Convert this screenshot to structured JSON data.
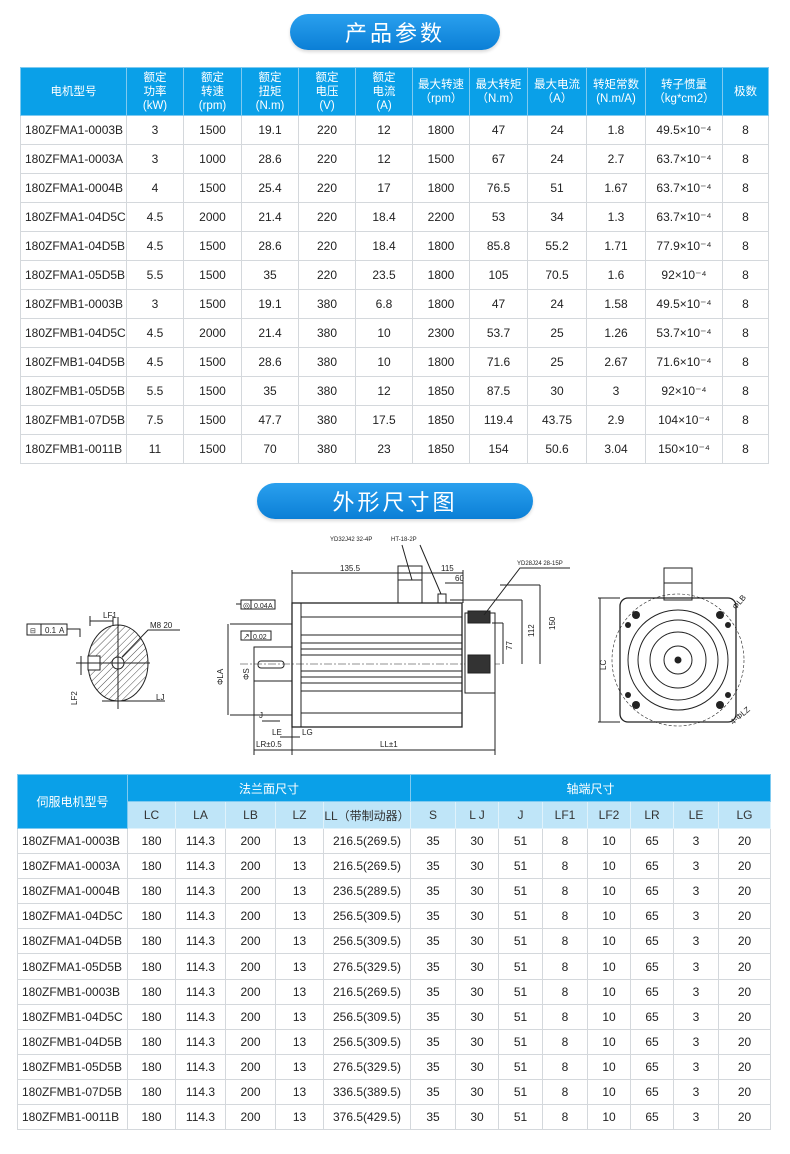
{
  "section1_title": "产品参数",
  "section2_title": "外形尺寸图",
  "params_table": {
    "headers": [
      "电机型号",
      "额定\n功率\n(kW)",
      "额定\n转速\n(rpm)",
      "额定\n扭矩\n(N.m)",
      "额定\n电压\n(V)",
      "额定\n电流\n(A)",
      "最大转速\n（rpm）",
      "最大转矩\n（N.m）",
      "最大电流\n（A）",
      "转矩常数\n(N.m/A)",
      "转子惯量\n（kg*cm2）",
      "极数"
    ],
    "rows": [
      [
        "180ZFMA1-0003B",
        "3",
        "1500",
        "19.1",
        "220",
        "12",
        "1800",
        "47",
        "24",
        "1.8",
        "49.5×10⁻⁴",
        "8"
      ],
      [
        "180ZFMA1-0003A",
        "3",
        "1000",
        "28.6",
        "220",
        "12",
        "1500",
        "67",
        "24",
        "2.7",
        "63.7×10⁻⁴",
        "8"
      ],
      [
        "180ZFMA1-0004B",
        "4",
        "1500",
        "25.4",
        "220",
        "17",
        "1800",
        "76.5",
        "51",
        "1.67",
        "63.7×10⁻⁴",
        "8"
      ],
      [
        "180ZFMA1-04D5C",
        "4.5",
        "2000",
        "21.4",
        "220",
        "18.4",
        "2200",
        "53",
        "34",
        "1.3",
        "63.7×10⁻⁴",
        "8"
      ],
      [
        "180ZFMA1-04D5B",
        "4.5",
        "1500",
        "28.6",
        "220",
        "18.4",
        "1800",
        "85.8",
        "55.2",
        "1.71",
        "77.9×10⁻⁴",
        "8"
      ],
      [
        "180ZFMA1-05D5B",
        "5.5",
        "1500",
        "35",
        "220",
        "23.5",
        "1800",
        "105",
        "70.5",
        "1.6",
        "92×10⁻⁴",
        "8"
      ],
      [
        "180ZFMB1-0003B",
        "3",
        "1500",
        "19.1",
        "380",
        "6.8",
        "1800",
        "47",
        "24",
        "1.58",
        "49.5×10⁻⁴",
        "8"
      ],
      [
        "180ZFMB1-04D5C",
        "4.5",
        "2000",
        "21.4",
        "380",
        "10",
        "2300",
        "53.7",
        "25",
        "1.26",
        "53.7×10⁻⁴",
        "8"
      ],
      [
        "180ZFMB1-04D5B",
        "4.5",
        "1500",
        "28.6",
        "380",
        "10",
        "1800",
        "71.6",
        "25",
        "2.67",
        "71.6×10⁻⁴",
        "8"
      ],
      [
        "180ZFMB1-05D5B",
        "5.5",
        "1500",
        "35",
        "380",
        "12",
        "1850",
        "87.5",
        "30",
        "3",
        "92×10⁻⁴",
        "8"
      ],
      [
        "180ZFMB1-07D5B",
        "7.5",
        "1500",
        "47.7",
        "380",
        "17.5",
        "1850",
        "119.4",
        "43.75",
        "2.9",
        "104×10⁻⁴",
        "8"
      ],
      [
        "180ZFMB1-0011B",
        "11",
        "1500",
        "70",
        "380",
        "23",
        "1850",
        "154",
        "50.6",
        "3.04",
        "150×10⁻⁴",
        "8"
      ]
    ]
  },
  "drawing": {
    "tol_flat": "0.1",
    "tol_ref": "A",
    "lf1": "LF1",
    "m8": "M8 20",
    "lf2": "LF2",
    "lj": "LJ",
    "conc": "0.04",
    "conc_ref": "A",
    "runout": "0.02",
    "la": "ΦLA",
    "s": "ΦS",
    "j": "J",
    "conn1": "YD32J42 32-4P",
    "conn2": "HT-18-2P",
    "conn3": "YD28J24 28-15P",
    "d135": "135.5",
    "d115": "115",
    "d60": "60",
    "d150": "150",
    "d112": "112",
    "d77": "77",
    "le": "LE",
    "lg": "LG",
    "lr": "LR±0.5",
    "ll": "LL±1",
    "lc": "LC",
    "lb": "ΦLB",
    "lz": "4-ΦLZ"
  },
  "dims_table": {
    "model_header": "伺服电机型号",
    "group1": "法兰面尺寸",
    "group2": "轴端尺寸",
    "headers": [
      "LC",
      "LA",
      "LB",
      "LZ",
      "LL（带制动器）",
      "S",
      "L J",
      "J",
      "LF1",
      "LF2",
      "LR",
      "LE",
      "LG"
    ],
    "rows": [
      [
        "180ZFMA1-0003B",
        "180",
        "114.3",
        "200",
        "13",
        "216.5(269.5)",
        "35",
        "30",
        "51",
        "8",
        "10",
        "65",
        "3",
        "20"
      ],
      [
        "180ZFMA1-0003A",
        "180",
        "114.3",
        "200",
        "13",
        "216.5(269.5)",
        "35",
        "30",
        "51",
        "8",
        "10",
        "65",
        "3",
        "20"
      ],
      [
        "180ZFMA1-0004B",
        "180",
        "114.3",
        "200",
        "13",
        "236.5(289.5)",
        "35",
        "30",
        "51",
        "8",
        "10",
        "65",
        "3",
        "20"
      ],
      [
        "180ZFMA1-04D5C",
        "180",
        "114.3",
        "200",
        "13",
        "256.5(309.5)",
        "35",
        "30",
        "51",
        "8",
        "10",
        "65",
        "3",
        "20"
      ],
      [
        "180ZFMA1-04D5B",
        "180",
        "114.3",
        "200",
        "13",
        "256.5(309.5)",
        "35",
        "30",
        "51",
        "8",
        "10",
        "65",
        "3",
        "20"
      ],
      [
        "180ZFMA1-05D5B",
        "180",
        "114.3",
        "200",
        "13",
        "276.5(329.5)",
        "35",
        "30",
        "51",
        "8",
        "10",
        "65",
        "3",
        "20"
      ],
      [
        "180ZFMB1-0003B",
        "180",
        "114.3",
        "200",
        "13",
        "216.5(269.5)",
        "35",
        "30",
        "51",
        "8",
        "10",
        "65",
        "3",
        "20"
      ],
      [
        "180ZFMB1-04D5C",
        "180",
        "114.3",
        "200",
        "13",
        "256.5(309.5)",
        "35",
        "30",
        "51",
        "8",
        "10",
        "65",
        "3",
        "20"
      ],
      [
        "180ZFMB1-04D5B",
        "180",
        "114.3",
        "200",
        "13",
        "256.5(309.5)",
        "35",
        "30",
        "51",
        "8",
        "10",
        "65",
        "3",
        "20"
      ],
      [
        "180ZFMB1-05D5B",
        "180",
        "114.3",
        "200",
        "13",
        "276.5(329.5)",
        "35",
        "30",
        "51",
        "8",
        "10",
        "65",
        "3",
        "20"
      ],
      [
        "180ZFMB1-07D5B",
        "180",
        "114.3",
        "200",
        "13",
        "336.5(389.5)",
        "35",
        "30",
        "51",
        "8",
        "10",
        "65",
        "3",
        "20"
      ],
      [
        "180ZFMB1-0011B",
        "180",
        "114.3",
        "200",
        "13",
        "376.5(429.5)",
        "35",
        "30",
        "51",
        "8",
        "10",
        "65",
        "3",
        "20"
      ]
    ]
  }
}
